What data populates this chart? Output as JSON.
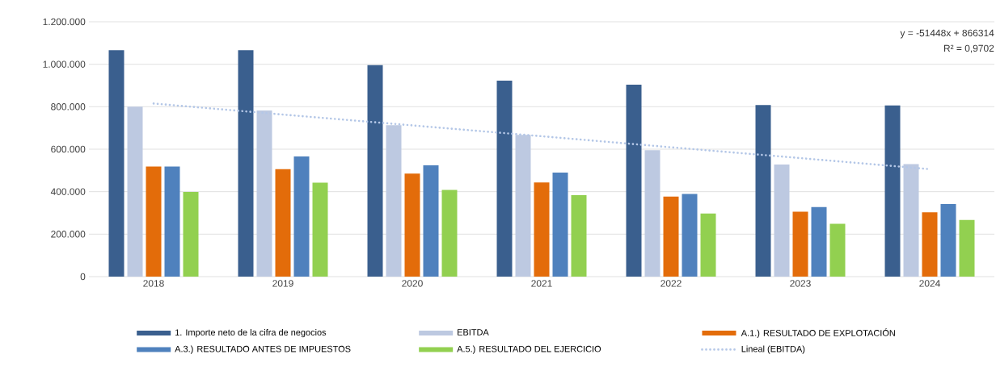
{
  "chart_data": {
    "type": "bar",
    "categories": [
      "2018",
      "2019",
      "2020",
      "2021",
      "2022",
      "2023",
      "2024"
    ],
    "series": [
      {
        "name": "1. Importe neto de la cifra de negocios",
        "color": "#3a5f8e",
        "values": [
          1066000,
          1066000,
          996000,
          923000,
          904000,
          808000,
          806000
        ]
      },
      {
        "name": "EBITDA",
        "color": "#bdc9e1",
        "values": [
          800000,
          782000,
          713000,
          667000,
          595000,
          528000,
          530000
        ]
      },
      {
        "name": "A.1.) RESULTADO DE EXPLOTACIÓN",
        "color": "#e36c0a",
        "values": [
          518000,
          506000,
          485000,
          443000,
          377000,
          306000,
          303000
        ]
      },
      {
        "name": "A.3.) RESULTADO ANTES DE IMPUESTOS",
        "color": "#4f81bd",
        "values": [
          518000,
          566000,
          524000,
          490000,
          389000,
          328000,
          342000
        ]
      },
      {
        "name": "A.5.) RESULTADO DEL EJERCICIO",
        "color": "#92d050",
        "values": [
          399000,
          442000,
          408000,
          384000,
          297000,
          249000,
          267000
        ]
      },
      {
        "name": "Lineal (EBITDA)",
        "type": "line",
        "line_style": "dotted",
        "color": "#b4c7e7",
        "values": [
          815000,
          763000,
          712000,
          661000,
          609000,
          558000,
          506000
        ]
      }
    ],
    "ylim": [
      0,
      1200000
    ],
    "yticks": [
      {
        "value": 0,
        "label": "0"
      },
      {
        "value": 200000,
        "label": "200.000"
      },
      {
        "value": 400000,
        "label": "400.000"
      },
      {
        "value": 600000,
        "label": "600.000"
      },
      {
        "value": 800000,
        "label": "800.000"
      },
      {
        "value": 1000000,
        "label": "1.000.000"
      },
      {
        "value": 1200000,
        "label": "1.200.000"
      }
    ],
    "grid": "y",
    "legend": "bottom",
    "annotations": [
      "y = -51448x + 866314",
      "R² = 0,9702"
    ]
  }
}
